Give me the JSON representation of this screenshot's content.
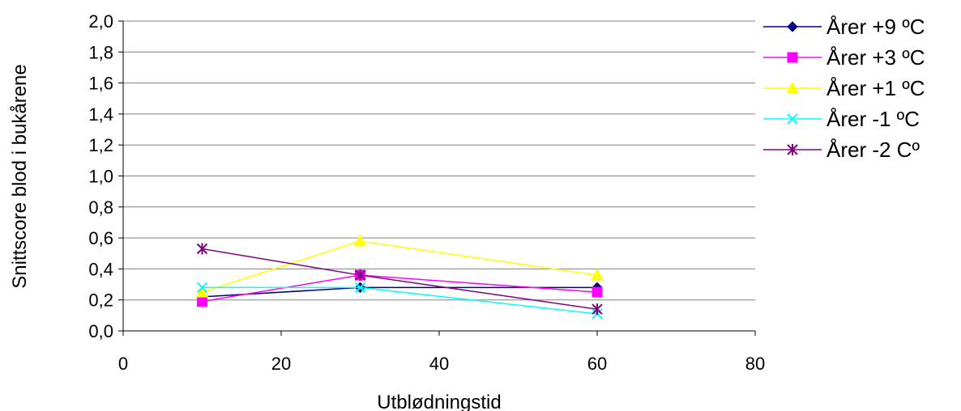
{
  "chart_data": {
    "type": "line",
    "xlabel": "Utblødningstid",
    "ylabel": "Snittscore blod i bukårene",
    "xlim": [
      0,
      80
    ],
    "ylim": [
      0,
      2.0
    ],
    "x_ticks": [
      "0",
      "20",
      "40",
      "60",
      "80"
    ],
    "y_ticks": [
      "0,0",
      "0,2",
      "0,4",
      "0,6",
      "0,8",
      "1,0",
      "1,2",
      "1,4",
      "1,6",
      "1,8",
      "2,0"
    ],
    "grid": "horizontal",
    "legend_position": "right",
    "series": [
      {
        "name": "Årer +9 ºC",
        "color": "#000080",
        "marker": "diamond",
        "points": [
          [
            10,
            0.22
          ],
          [
            30,
            0.28
          ],
          [
            60,
            0.28
          ]
        ]
      },
      {
        "name": "Årer +3 ºC",
        "color": "#FF00FF",
        "marker": "square",
        "points": [
          [
            10,
            0.19
          ],
          [
            30,
            0.36
          ],
          [
            60,
            0.25
          ]
        ]
      },
      {
        "name": "Årer +1 ºC",
        "color": "#FFFF00",
        "marker": "triangle",
        "points": [
          [
            10,
            0.25
          ],
          [
            30,
            0.58
          ],
          [
            60,
            0.36
          ]
        ]
      },
      {
        "name": "Årer -1 ºC",
        "color": "#00FFFF",
        "marker": "x",
        "points": [
          [
            10,
            0.28
          ],
          [
            30,
            0.28
          ],
          [
            60,
            0.11
          ]
        ]
      },
      {
        "name": "Årer -2 Cº",
        "color": "#800080",
        "marker": "star",
        "points": [
          [
            10,
            0.53
          ],
          [
            30,
            0.36
          ],
          [
            60,
            0.14
          ]
        ]
      }
    ]
  }
}
